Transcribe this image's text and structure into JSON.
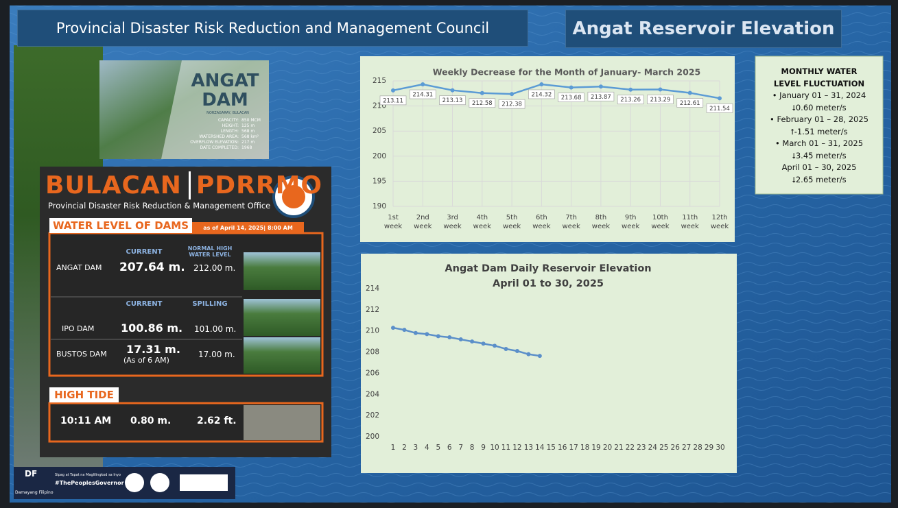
{
  "header": {
    "council": "Provincial Disaster Risk Reduction and Management Council",
    "title": "Angat Reservoir Elevation"
  },
  "dam_card": {
    "name": "ANGAT",
    "name2": "DAM",
    "location": "NORZAGARAY, BULACAN",
    "specs": [
      [
        "CAPACITY:",
        "850 MCM"
      ],
      [
        "HEIGHT:",
        "125 m"
      ],
      [
        "LENGTH:",
        "568 m"
      ],
      [
        "WATERSHED AREA:",
        "568 km²"
      ],
      [
        "OVERFLOW ELEVATION:",
        "217 m"
      ],
      [
        "DATE COMPLETED:",
        "1968"
      ]
    ]
  },
  "panel": {
    "brand": [
      "BULACAN",
      "PDRRMO"
    ],
    "office": "Provincial Disaster Risk Reduction & Management Office",
    "section": "WATER LEVEL OF DAMS",
    "as_of": "as of April 14, 2025| 8:00 AM",
    "angat": {
      "col_current": "CURRENT",
      "col_normal": "NORMAL HIGH WATER LEVEL",
      "name": "ANGAT DAM",
      "current": "207.64 m.",
      "normal": "212.00 m."
    },
    "col_current": "CURRENT",
    "col_spilling": "SPILLING",
    "ipo": {
      "name": "IPO DAM",
      "current": "100.86 m.",
      "spilling": "101.00 m."
    },
    "bustos": {
      "name": "BUSTOS DAM",
      "current": "17.31 m.",
      "note": "(As of 6 AM)",
      "spilling": "17.00 m."
    },
    "tide_title": "HIGH TIDE",
    "tide": [
      "10:11 AM",
      "0.80 m.",
      "2.62 ft."
    ]
  },
  "fluctuation": {
    "title": "MONTHLY WATER LEVEL FLUCTUATION",
    "items": [
      {
        "period": "January 01 – 31, 2024",
        "change": "⭣0.60 meter/s"
      },
      {
        "period": "February 01 – 28, 2025",
        "change": "⭡-1.51 meter/s"
      },
      {
        "period": "March 01 – 31, 2025",
        "change": "⭣3.45 meter/s"
      },
      {
        "period": "April 01 – 30, 2025",
        "change": "⭣2.65  meter/s"
      }
    ]
  },
  "footer": {
    "logo": "DF",
    "tagline": "Damayang Filipino",
    "motto": "Sipag at Tapat na Maglilingkod sa Inyo",
    "hashtag": "#ThePeoplesGovernor"
  },
  "chart_data": [
    {
      "type": "line",
      "title": "Weekly Decrease for the Month of  January- March 2025",
      "categories": [
        "1st week",
        "2nd week",
        "3rd week",
        "4th week",
        "5th week",
        "6th week",
        "7th week",
        "8th week",
        "9th week",
        "10th week",
        "11th week",
        "12th week"
      ],
      "values": [
        213.11,
        214.31,
        213.13,
        212.58,
        212.38,
        214.32,
        213.68,
        213.87,
        213.26,
        213.29,
        212.61,
        211.54
      ],
      "color": "#5b9bd5",
      "ylim": [
        190,
        215
      ],
      "yticks": [
        190,
        195,
        200,
        205,
        210,
        215
      ],
      "grid": true
    },
    {
      "type": "line",
      "title": "Angat Dam Daily Reservoir Elevation",
      "subtitle": "April 01 to 30, 2025",
      "x": [
        1,
        2,
        3,
        4,
        5,
        6,
        7,
        8,
        9,
        10,
        11,
        12,
        13,
        14,
        15,
        16,
        17,
        18,
        19,
        20,
        21,
        22,
        23,
        24,
        25,
        26,
        27,
        28,
        29,
        30
      ],
      "values": [
        210.3,
        210.1,
        209.8,
        209.7,
        209.5,
        209.4,
        209.2,
        209.0,
        208.8,
        208.6,
        208.3,
        208.1,
        207.8,
        207.64,
        null,
        null,
        null,
        null,
        null,
        null,
        null,
        null,
        null,
        null,
        null,
        null,
        null,
        null,
        null,
        null
      ],
      "color": "#5b8fc9",
      "xlim": [
        1,
        30
      ],
      "ylim": [
        200,
        214
      ],
      "yticks": [
        200,
        202,
        204,
        206,
        208,
        210,
        212,
        214
      ],
      "grid": false
    }
  ]
}
